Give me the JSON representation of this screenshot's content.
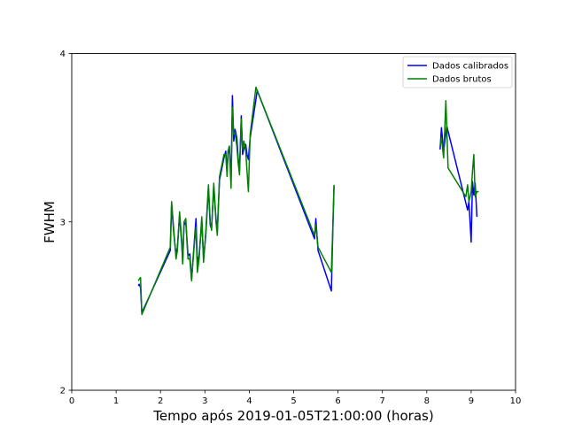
{
  "chart_data": {
    "type": "line",
    "title": "",
    "xlabel": "Tempo após 2019-01-05T21:00:00 (horas)",
    "ylabel": "FWHM",
    "xlim": [
      0,
      10
    ],
    "ylim": [
      2,
      4
    ],
    "xticks": [
      "0",
      "1",
      "2",
      "3",
      "4",
      "5",
      "6",
      "7",
      "8",
      "9",
      "10"
    ],
    "yticks": [
      "2",
      "3",
      "4"
    ],
    "grid": false,
    "legend_position": "top-right",
    "series": [
      {
        "name": "Dados calibrados",
        "color": "#0000ff",
        "segments": [
          [
            [
              1.5,
              2.62
            ],
            [
              1.52,
              2.63
            ],
            [
              1.55,
              2.61
            ],
            [
              1.58,
              2.46
            ],
            [
              2.22,
              2.83
            ],
            [
              2.25,
              3.1
            ],
            [
              2.3,
              2.93
            ],
            [
              2.35,
              2.8
            ],
            [
              2.38,
              2.85
            ],
            [
              2.43,
              3.04
            ],
            [
              2.48,
              2.86
            ],
            [
              2.5,
              2.76
            ],
            [
              2.53,
              2.98
            ],
            [
              2.57,
              3.0
            ],
            [
              2.6,
              2.88
            ],
            [
              2.62,
              2.8
            ],
            [
              2.66,
              2.81
            ],
            [
              2.7,
              2.66
            ],
            [
              2.75,
              2.84
            ],
            [
              2.8,
              3.02
            ],
            [
              2.83,
              2.76
            ],
            [
              2.87,
              2.8
            ],
            [
              2.93,
              3.01
            ],
            [
              2.97,
              2.78
            ],
            [
              3.02,
              2.92
            ],
            [
              3.08,
              3.2
            ],
            [
              3.12,
              2.98
            ],
            [
              3.15,
              2.96
            ],
            [
              3.2,
              3.21
            ],
            [
              3.25,
              3.02
            ],
            [
              3.28,
              2.95
            ],
            [
              3.33,
              3.25
            ],
            [
              3.43,
              3.38
            ],
            [
              3.47,
              3.42
            ],
            [
              3.5,
              3.29
            ],
            [
              3.52,
              3.4
            ],
            [
              3.55,
              3.45
            ],
            [
              3.59,
              3.25
            ],
            [
              3.62,
              3.75
            ],
            [
              3.65,
              3.48
            ],
            [
              3.68,
              3.55
            ],
            [
              3.72,
              3.5
            ],
            [
              3.75,
              3.38
            ],
            [
              3.78,
              3.3
            ],
            [
              3.82,
              3.63
            ],
            [
              3.85,
              3.4
            ],
            [
              3.88,
              3.44
            ],
            [
              3.92,
              3.46
            ],
            [
              3.95,
              3.4
            ],
            [
              3.98,
              3.37
            ],
            [
              4.02,
              3.5
            ],
            [
              4.18,
              3.78
            ],
            [
              5.47,
              2.9
            ],
            [
              5.5,
              3.02
            ],
            [
              5.55,
              2.83
            ],
            [
              5.85,
              2.59
            ],
            [
              5.88,
              2.92
            ],
            [
              5.91,
              3.21
            ]
          ],
          [
            [
              8.3,
              3.43
            ],
            [
              8.33,
              3.56
            ],
            [
              8.38,
              3.42
            ],
            [
              8.45,
              3.57
            ],
            [
              8.92,
              3.07
            ],
            [
              8.95,
              3.12
            ],
            [
              9.0,
              2.88
            ],
            [
              9.03,
              3.24
            ],
            [
              9.06,
              3.16
            ],
            [
              9.09,
              3.23
            ],
            [
              9.13,
              3.03
            ]
          ]
        ]
      },
      {
        "name": "Dados brutos",
        "color": "#008000",
        "segments": [
          [
            [
              1.5,
              2.65
            ],
            [
              1.52,
              2.66
            ],
            [
              1.55,
              2.67
            ],
            [
              1.58,
              2.45
            ],
            [
              2.22,
              2.85
            ],
            [
              2.25,
              3.12
            ],
            [
              2.3,
              2.95
            ],
            [
              2.35,
              2.78
            ],
            [
              2.38,
              2.83
            ],
            [
              2.43,
              3.06
            ],
            [
              2.48,
              2.88
            ],
            [
              2.5,
              2.75
            ],
            [
              2.53,
              3.0
            ],
            [
              2.57,
              3.02
            ],
            [
              2.6,
              2.86
            ],
            [
              2.62,
              2.78
            ],
            [
              2.66,
              2.78
            ],
            [
              2.7,
              2.65
            ],
            [
              2.75,
              2.83
            ],
            [
              2.8,
              2.97
            ],
            [
              2.83,
              2.7
            ],
            [
              2.87,
              2.78
            ],
            [
              2.93,
              3.03
            ],
            [
              2.97,
              2.76
            ],
            [
              3.02,
              2.94
            ],
            [
              3.08,
              3.22
            ],
            [
              3.12,
              3.0
            ],
            [
              3.15,
              2.95
            ],
            [
              3.2,
              3.23
            ],
            [
              3.25,
              3.0
            ],
            [
              3.28,
              2.92
            ],
            [
              3.33,
              3.27
            ],
            [
              3.43,
              3.4
            ],
            [
              3.47,
              3.4
            ],
            [
              3.5,
              3.27
            ],
            [
              3.52,
              3.42
            ],
            [
              3.55,
              3.45
            ],
            [
              3.59,
              3.2
            ],
            [
              3.62,
              3.68
            ],
            [
              3.65,
              3.52
            ],
            [
              3.68,
              3.53
            ],
            [
              3.72,
              3.45
            ],
            [
              3.75,
              3.35
            ],
            [
              3.78,
              3.28
            ],
            [
              3.82,
              3.61
            ],
            [
              3.85,
              3.43
            ],
            [
              3.88,
              3.48
            ],
            [
              3.92,
              3.42
            ],
            [
              3.95,
              3.3
            ],
            [
              3.98,
              3.18
            ],
            [
              4.02,
              3.52
            ],
            [
              4.15,
              3.8
            ],
            [
              5.47,
              2.92
            ],
            [
              5.5,
              2.98
            ],
            [
              5.55,
              2.85
            ],
            [
              5.85,
              2.7
            ],
            [
              5.88,
              2.95
            ],
            [
              5.91,
              3.22
            ]
          ],
          [
            [
              8.3,
              3.45
            ],
            [
              8.33,
              3.5
            ],
            [
              8.38,
              3.38
            ],
            [
              8.43,
              3.72
            ],
            [
              8.48,
              3.32
            ],
            [
              8.88,
              3.15
            ],
            [
              8.92,
              3.22
            ],
            [
              8.95,
              3.12
            ],
            [
              9.0,
              3.18
            ],
            [
              9.03,
              3.3
            ],
            [
              9.06,
              3.4
            ],
            [
              9.09,
              3.15
            ],
            [
              9.13,
              3.18
            ],
            [
              9.17,
              3.18
            ]
          ]
        ]
      }
    ]
  }
}
